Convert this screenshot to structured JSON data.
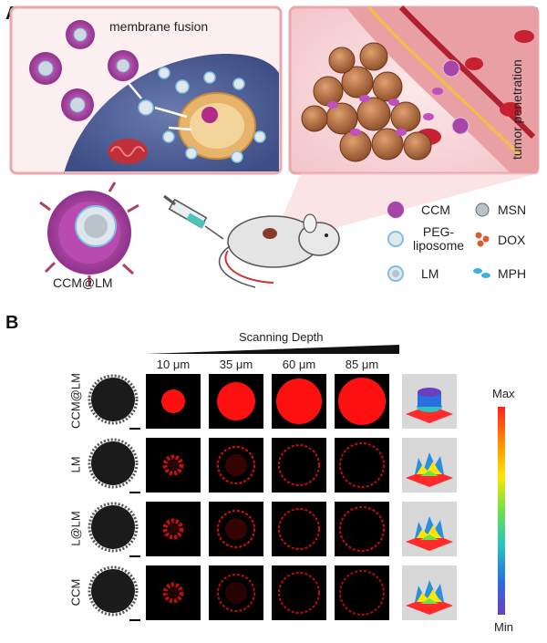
{
  "panel_a": {
    "letter": "A",
    "membrane_fusion_label": "membrane fusion",
    "tumor_penetration_label": "tumor penetration",
    "nanoparticle_label": "CCM@LM",
    "legend": [
      {
        "key": "ccm",
        "label": "CCM"
      },
      {
        "key": "msn",
        "label": "MSN"
      },
      {
        "key": "peg",
        "label": "PEG-\nliposome"
      },
      {
        "key": "dox",
        "label": "DOX"
      },
      {
        "key": "lm",
        "label": "LM"
      },
      {
        "key": "mph",
        "label": "MPH"
      }
    ]
  },
  "panel_b": {
    "letter": "B",
    "depth_title": "Scanning Depth",
    "depths": [
      "10 μm",
      "35 μm",
      "60 μm",
      "85 μm"
    ],
    "rows": [
      {
        "label": "CCM@LM",
        "intensity": [
          0.35,
          0.75,
          0.95,
          1.0
        ]
      },
      {
        "label": "LM",
        "intensity": [
          0.3,
          0.35,
          0.3,
          0.25
        ]
      },
      {
        "label": "L@LM",
        "intensity": [
          0.3,
          0.35,
          0.3,
          0.3
        ]
      },
      {
        "label": "CCM",
        "intensity": [
          0.25,
          0.25,
          0.25,
          0.2
        ]
      }
    ],
    "colorbar_max": "Max",
    "colorbar_min": "Min",
    "fluor_color": "#ff1010"
  }
}
